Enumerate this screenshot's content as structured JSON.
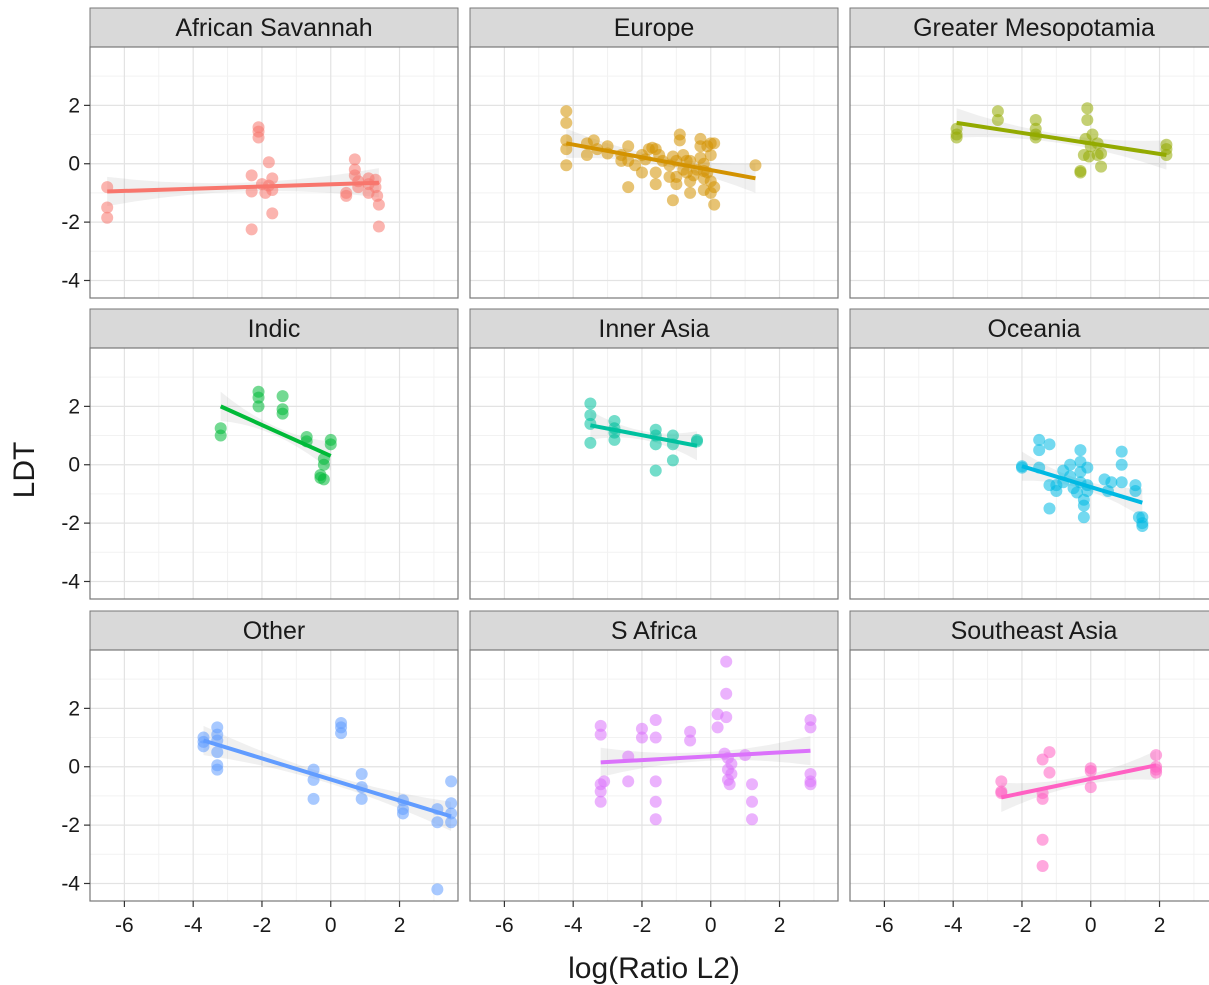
{
  "chart_data": {
    "type": "scatter",
    "xlabel": "log(Ratio L2)",
    "ylabel": "LDT",
    "xlim": [
      -7,
      3.7
    ],
    "ylim": [
      -4.6,
      4.0
    ],
    "x_ticks": [
      -6,
      -4,
      -2,
      0,
      2
    ],
    "x_tick_labels": [
      "-6",
      "-4",
      "-2",
      "0",
      "2"
    ],
    "y_ticks": [
      -4,
      -2,
      0,
      2
    ],
    "y_tick_labels": [
      "-4",
      "-2",
      "0",
      "2"
    ],
    "grid": true,
    "legend": "none",
    "facet_layout": "3x3",
    "smoother": "linear fit with confidence band",
    "panels": [
      {
        "name": "African Savannah",
        "color": "#F8766D",
        "fit": {
          "x1": -6.5,
          "y1": -0.95,
          "x2": 1.4,
          "y2": -0.65
        },
        "points": [
          [
            -6.5,
            -0.8
          ],
          [
            -6.5,
            -1.5
          ],
          [
            -6.5,
            -1.85
          ],
          [
            -2.3,
            -2.25
          ],
          [
            -2.3,
            -0.4
          ],
          [
            -2.3,
            -0.95
          ],
          [
            -2.1,
            1.25
          ],
          [
            -2.1,
            1.1
          ],
          [
            -2.1,
            0.9
          ],
          [
            -2.0,
            -0.7
          ],
          [
            -1.9,
            -1.0
          ],
          [
            -1.8,
            -0.75
          ],
          [
            -1.8,
            0.05
          ],
          [
            -1.7,
            -0.5
          ],
          [
            -1.7,
            -0.9
          ],
          [
            -1.7,
            -1.7
          ],
          [
            0.45,
            -1.0
          ],
          [
            0.45,
            -1.1
          ],
          [
            0.7,
            0.15
          ],
          [
            0.7,
            -0.2
          ],
          [
            0.7,
            -0.4
          ],
          [
            0.8,
            -0.6
          ],
          [
            0.8,
            -0.8
          ],
          [
            1.1,
            -0.5
          ],
          [
            1.1,
            -0.7
          ],
          [
            1.1,
            -1.0
          ],
          [
            1.3,
            -0.55
          ],
          [
            1.3,
            -0.8
          ],
          [
            1.35,
            -1.1
          ],
          [
            1.4,
            -1.4
          ],
          [
            1.4,
            -2.15
          ]
        ]
      },
      {
        "name": "Europe",
        "color": "#D39200",
        "fit": {
          "x1": -4.2,
          "y1": 0.7,
          "x2": 1.3,
          "y2": -0.5
        },
        "points": [
          [
            -4.2,
            1.8
          ],
          [
            -4.2,
            1.4
          ],
          [
            -4.2,
            0.8
          ],
          [
            -4.2,
            0.5
          ],
          [
            -4.2,
            -0.05
          ],
          [
            -3.6,
            0.3
          ],
          [
            -3.6,
            0.7
          ],
          [
            -3.4,
            0.8
          ],
          [
            -3.3,
            0.5
          ],
          [
            -3.0,
            0.6
          ],
          [
            -3.0,
            0.35
          ],
          [
            -2.6,
            0.1
          ],
          [
            -2.6,
            0.3
          ],
          [
            -2.4,
            0.1
          ],
          [
            -2.4,
            0.6
          ],
          [
            -2.4,
            -0.8
          ],
          [
            -2.2,
            -0.05
          ],
          [
            -2.0,
            0.3
          ],
          [
            -2.0,
            -0.3
          ],
          [
            -1.9,
            0.15
          ],
          [
            -1.8,
            0.5
          ],
          [
            -1.7,
            0.55
          ],
          [
            -1.6,
            0.5
          ],
          [
            -1.6,
            -0.3
          ],
          [
            -1.6,
            -0.7
          ],
          [
            -1.5,
            0.3
          ],
          [
            -1.4,
            0.1
          ],
          [
            -1.2,
            -0.45
          ],
          [
            -1.2,
            -0.05
          ],
          [
            -1.1,
            0.25
          ],
          [
            -1.1,
            -1.25
          ],
          [
            -1.0,
            -0.7
          ],
          [
            -1.0,
            0.1
          ],
          [
            -1.0,
            -0.45
          ],
          [
            -0.9,
            0.8
          ],
          [
            -0.9,
            1.0
          ],
          [
            -0.8,
            0.3
          ],
          [
            -0.8,
            -0.2
          ],
          [
            -0.7,
            -0.3
          ],
          [
            -0.7,
            0.1
          ],
          [
            -0.6,
            -0.6
          ],
          [
            -0.6,
            -1.0
          ],
          [
            -0.6,
            0.1
          ],
          [
            -0.5,
            -0.4
          ],
          [
            -0.4,
            -0.2
          ],
          [
            -0.3,
            0.85
          ],
          [
            -0.3,
            0.6
          ],
          [
            -0.3,
            0.2
          ],
          [
            -0.2,
            -0.5
          ],
          [
            -0.2,
            -0.25
          ],
          [
            -0.2,
            0.0
          ],
          [
            -0.2,
            -0.9
          ],
          [
            -0.1,
            0.6
          ],
          [
            -0.1,
            -0.3
          ],
          [
            0.0,
            0.7
          ],
          [
            0.0,
            0.3
          ],
          [
            0.0,
            -0.6
          ],
          [
            0.0,
            -1.0
          ],
          [
            0.1,
            -1.4
          ],
          [
            0.1,
            -0.8
          ],
          [
            0.1,
            0.7
          ],
          [
            1.3,
            -0.05
          ]
        ]
      },
      {
        "name": "Greater Mesopotamia",
        "color": "#93AA00",
        "fit": {
          "x1": -3.9,
          "y1": 1.4,
          "x2": 2.2,
          "y2": 0.3
        },
        "points": [
          [
            -3.9,
            1.2
          ],
          [
            -3.9,
            0.9
          ],
          [
            -3.9,
            1.0
          ],
          [
            -2.7,
            1.8
          ],
          [
            -2.7,
            1.5
          ],
          [
            -1.6,
            1.5
          ],
          [
            -1.6,
            1.2
          ],
          [
            -1.6,
            1.0
          ],
          [
            -1.6,
            0.9
          ],
          [
            -0.3,
            -0.25
          ],
          [
            -0.3,
            -0.3
          ],
          [
            -0.2,
            0.3
          ],
          [
            -0.15,
            0.85
          ],
          [
            -0.1,
            1.9
          ],
          [
            -0.1,
            1.5
          ],
          [
            -0.05,
            0.25
          ],
          [
            0.0,
            0.6
          ],
          [
            0.05,
            1.0
          ],
          [
            0.2,
            0.7
          ],
          [
            0.2,
            0.3
          ],
          [
            0.3,
            -0.1
          ],
          [
            0.3,
            0.35
          ],
          [
            2.2,
            0.65
          ],
          [
            2.2,
            0.5
          ],
          [
            2.2,
            0.3
          ]
        ]
      },
      {
        "name": "Indic",
        "color": "#00BA38",
        "fit": {
          "x1": -3.2,
          "y1": 2.0,
          "x2": 0.0,
          "y2": 0.3
        },
        "points": [
          [
            -3.2,
            1.25
          ],
          [
            -3.2,
            1.0
          ],
          [
            -2.1,
            2.5
          ],
          [
            -2.1,
            2.3
          ],
          [
            -2.1,
            2.0
          ],
          [
            -1.4,
            2.35
          ],
          [
            -1.4,
            1.9
          ],
          [
            -1.4,
            1.75
          ],
          [
            -0.7,
            0.95
          ],
          [
            -0.7,
            0.8
          ],
          [
            -0.3,
            -0.35
          ],
          [
            -0.3,
            -0.45
          ],
          [
            -0.2,
            0.0
          ],
          [
            -0.2,
            0.2
          ],
          [
            -0.2,
            -0.5
          ],
          [
            0.0,
            0.85
          ],
          [
            0.0,
            0.7
          ]
        ]
      },
      {
        "name": "Inner Asia",
        "color": "#00C19F",
        "fit": {
          "x1": -3.5,
          "y1": 1.35,
          "x2": -0.4,
          "y2": 0.65
        },
        "points": [
          [
            -3.5,
            2.1
          ],
          [
            -3.5,
            1.7
          ],
          [
            -3.5,
            1.4
          ],
          [
            -3.5,
            0.75
          ],
          [
            -2.8,
            1.5
          ],
          [
            -2.8,
            1.25
          ],
          [
            -2.8,
            1.1
          ],
          [
            -2.8,
            0.85
          ],
          [
            -1.6,
            1.2
          ],
          [
            -1.6,
            1.0
          ],
          [
            -1.6,
            0.7
          ],
          [
            -1.6,
            -0.2
          ],
          [
            -1.1,
            1.0
          ],
          [
            -1.1,
            0.7
          ],
          [
            -1.1,
            0.15
          ],
          [
            -0.4,
            0.85
          ],
          [
            -0.4,
            0.8
          ]
        ]
      },
      {
        "name": "Oceania",
        "color": "#00B9E3",
        "fit": {
          "x1": -2.0,
          "y1": -0.05,
          "x2": 1.5,
          "y2": -1.3
        },
        "points": [
          [
            -2.0,
            -0.05
          ],
          [
            -2.0,
            -0.1
          ],
          [
            -1.5,
            0.85
          ],
          [
            -1.5,
            0.5
          ],
          [
            -1.5,
            -0.1
          ],
          [
            -1.2,
            0.7
          ],
          [
            -1.2,
            -0.7
          ],
          [
            -1.2,
            -1.5
          ],
          [
            -1.0,
            -0.9
          ],
          [
            -1.0,
            -0.7
          ],
          [
            -0.8,
            -0.2
          ],
          [
            -0.8,
            -0.6
          ],
          [
            -0.6,
            0.0
          ],
          [
            -0.6,
            -0.4
          ],
          [
            -0.5,
            -0.8
          ],
          [
            -0.4,
            -0.95
          ],
          [
            -0.3,
            0.5
          ],
          [
            -0.3,
            0.1
          ],
          [
            -0.3,
            -0.25
          ],
          [
            -0.3,
            -0.6
          ],
          [
            -0.2,
            -1.2
          ],
          [
            -0.2,
            -1.4
          ],
          [
            -0.2,
            -1.8
          ],
          [
            -0.1,
            -0.1
          ],
          [
            -0.1,
            -0.7
          ],
          [
            -0.1,
            -0.9
          ],
          [
            0.4,
            -0.5
          ],
          [
            0.5,
            -0.9
          ],
          [
            0.6,
            -0.6
          ],
          [
            0.9,
            0.45
          ],
          [
            0.9,
            0.0
          ],
          [
            0.9,
            -0.6
          ],
          [
            1.3,
            -0.7
          ],
          [
            1.3,
            -0.9
          ],
          [
            1.4,
            -1.8
          ],
          [
            1.5,
            -2.0
          ],
          [
            1.5,
            -2.1
          ],
          [
            1.5,
            -1.8
          ]
        ]
      },
      {
        "name": "Other",
        "color": "#619CFF",
        "fit": {
          "x1": -3.7,
          "y1": 0.9,
          "x2": 3.5,
          "y2": -1.7
        },
        "points": [
          [
            -3.7,
            1.0
          ],
          [
            -3.7,
            0.85
          ],
          [
            -3.7,
            0.7
          ],
          [
            -3.3,
            1.35
          ],
          [
            -3.3,
            1.1
          ],
          [
            -3.3,
            0.9
          ],
          [
            -3.3,
            0.5
          ],
          [
            -3.3,
            0.05
          ],
          [
            -3.3,
            -0.1
          ],
          [
            -0.5,
            -0.1
          ],
          [
            -0.5,
            -0.45
          ],
          [
            -0.5,
            -1.1
          ],
          [
            0.3,
            1.5
          ],
          [
            0.3,
            1.35
          ],
          [
            0.3,
            1.15
          ],
          [
            0.9,
            -0.25
          ],
          [
            0.9,
            -0.7
          ],
          [
            0.9,
            -1.1
          ],
          [
            2.1,
            -1.15
          ],
          [
            2.1,
            -1.45
          ],
          [
            2.1,
            -1.6
          ],
          [
            3.1,
            -1.45
          ],
          [
            3.1,
            -1.9
          ],
          [
            3.1,
            -4.2
          ],
          [
            3.5,
            -0.5
          ],
          [
            3.5,
            -1.25
          ],
          [
            3.5,
            -1.6
          ],
          [
            3.5,
            -1.9
          ]
        ]
      },
      {
        "name": "S Africa",
        "color": "#DB72FB",
        "fit": {
          "x1": -3.2,
          "y1": 0.15,
          "x2": 2.9,
          "y2": 0.55
        },
        "points": [
          [
            -3.2,
            1.4
          ],
          [
            -3.2,
            1.1
          ],
          [
            -3.2,
            -0.6
          ],
          [
            -3.2,
            -0.85
          ],
          [
            -3.2,
            -1.2
          ],
          [
            -3.1,
            -0.5
          ],
          [
            -2.4,
            0.35
          ],
          [
            -2.4,
            -0.5
          ],
          [
            -2.0,
            1.3
          ],
          [
            -2.0,
            1.0
          ],
          [
            -1.6,
            1.6
          ],
          [
            -1.6,
            1.0
          ],
          [
            -1.6,
            -0.5
          ],
          [
            -1.6,
            -1.2
          ],
          [
            -1.6,
            -1.8
          ],
          [
            -0.6,
            1.2
          ],
          [
            -0.6,
            0.9
          ],
          [
            0.2,
            1.8
          ],
          [
            0.2,
            1.35
          ],
          [
            0.4,
            0.45
          ],
          [
            0.45,
            3.6
          ],
          [
            0.45,
            2.5
          ],
          [
            0.45,
            1.7
          ],
          [
            0.5,
            0.3
          ],
          [
            0.5,
            -0.1
          ],
          [
            0.5,
            -0.45
          ],
          [
            0.55,
            -0.6
          ],
          [
            0.6,
            0.1
          ],
          [
            0.6,
            -0.25
          ],
          [
            1.0,
            0.4
          ],
          [
            1.2,
            -0.6
          ],
          [
            1.2,
            -1.2
          ],
          [
            1.2,
            -1.8
          ],
          [
            2.9,
            1.6
          ],
          [
            2.9,
            1.35
          ],
          [
            2.9,
            -0.25
          ],
          [
            2.9,
            -0.5
          ],
          [
            2.9,
            -0.6
          ]
        ]
      },
      {
        "name": "Southeast Asia",
        "color": "#FF61C3",
        "fit": {
          "x1": -2.6,
          "y1": -1.05,
          "x2": 1.9,
          "y2": 0.05
        },
        "points": [
          [
            -2.6,
            -0.5
          ],
          [
            -2.6,
            -0.85
          ],
          [
            -2.6,
            -0.9
          ],
          [
            -1.4,
            0.25
          ],
          [
            -1.4,
            -0.9
          ],
          [
            -1.4,
            -1.1
          ],
          [
            -1.4,
            -2.5
          ],
          [
            -1.4,
            -3.4
          ],
          [
            -1.2,
            0.5
          ],
          [
            -1.2,
            -0.2
          ],
          [
            -0.0,
            -0.05
          ],
          [
            -0.0,
            -0.15
          ],
          [
            -0.0,
            -0.7
          ],
          [
            1.9,
            0.4
          ],
          [
            1.9,
            0.0
          ],
          [
            1.9,
            -0.1
          ],
          [
            1.9,
            -0.2
          ]
        ]
      }
    ]
  }
}
